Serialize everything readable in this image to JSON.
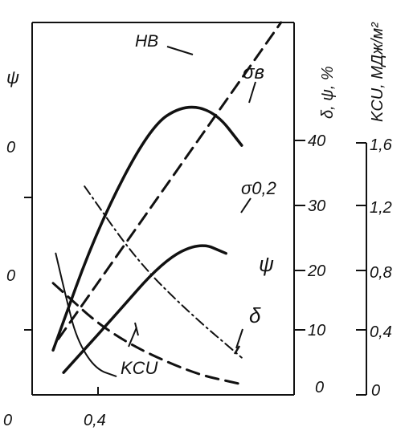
{
  "chart_data": {
    "type": "line",
    "title": "",
    "axes": {
      "x": {
        "ticks": [
          "0",
          "0,4"
        ]
      },
      "y_left": {
        "ticks": [
          "0",
          "0",
          "ψ"
        ],
        "top_label": "ψ"
      },
      "y_right_1": {
        "label": "δ, ψ, %",
        "ticks": [
          "0",
          "10",
          "20",
          "30",
          "40"
        ],
        "ylim": [
          0,
          40
        ]
      },
      "y_right_2": {
        "label": "KCU, МДж/м²",
        "ticks": [
          "0",
          "0,4",
          "0,8",
          "1,2",
          "1,6"
        ],
        "ylim": [
          0,
          1.6
        ]
      }
    },
    "series_labels": {
      "hb": "HB",
      "sigma_b": "σв",
      "sigma_02": "σ0,2",
      "psi": "ψ",
      "delta": "δ",
      "kcu": "KCU"
    },
    "series": [
      {
        "key": "hb",
        "style": "dashed",
        "points": [
          [
            0.1,
            0.15
          ],
          [
            0.95,
            1.0
          ]
        ]
      },
      {
        "key": "sigma_b",
        "style": "solid",
        "points": [
          [
            0.08,
            0.12
          ],
          [
            0.25,
            0.45
          ],
          [
            0.45,
            0.72
          ],
          [
            0.58,
            0.78
          ],
          [
            0.7,
            0.76
          ],
          [
            0.8,
            0.67
          ]
        ]
      },
      {
        "key": "sigma_02",
        "style": "solid",
        "points": [
          [
            0.12,
            0.06
          ],
          [
            0.3,
            0.2
          ],
          [
            0.5,
            0.36
          ],
          [
            0.64,
            0.41
          ],
          [
            0.74,
            0.38
          ]
        ]
      },
      {
        "key": "psi",
        "style": "dashdot",
        "points": [
          [
            0.2,
            0.56
          ],
          [
            0.4,
            0.36
          ],
          [
            0.6,
            0.22
          ],
          [
            0.8,
            0.1
          ]
        ]
      },
      {
        "key": "delta",
        "style": "dashed",
        "points": [
          [
            0.08,
            0.3
          ],
          [
            0.3,
            0.16
          ],
          [
            0.6,
            0.06
          ],
          [
            0.79,
            0.03
          ]
        ]
      },
      {
        "key": "kcu",
        "style": "solid-thin",
        "points": [
          [
            0.09,
            0.38
          ],
          [
            0.13,
            0.26
          ],
          [
            0.17,
            0.15
          ],
          [
            0.24,
            0.07
          ],
          [
            0.32,
            0.05
          ]
        ]
      }
    ]
  }
}
